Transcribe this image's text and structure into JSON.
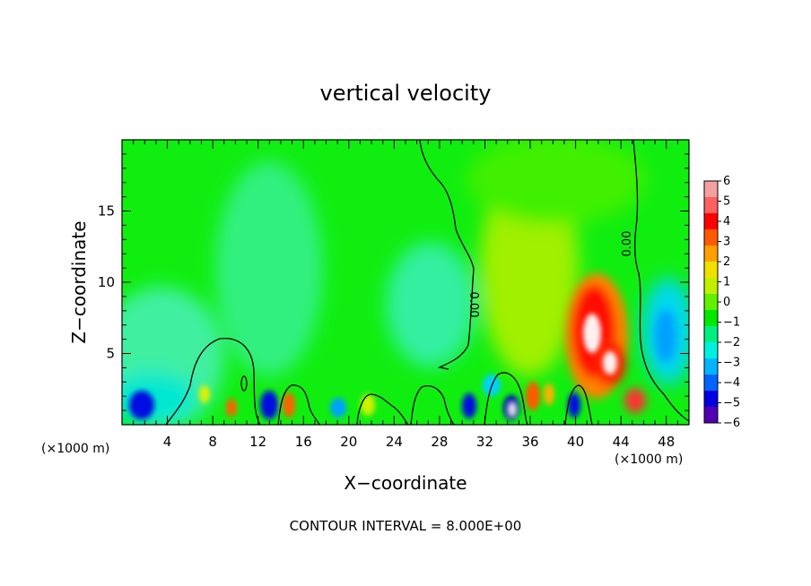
{
  "chart_data": {
    "type": "heatmap",
    "title": "vertical velocity",
    "xlabel": "X−coordinate",
    "ylabel": "Z−coordinate",
    "x_unit_left": "(×1000 m)",
    "x_unit_right": "(×1000 m)",
    "footer": "CONTOUR INTERVAL = 8.000E+00",
    "xlim": [
      0,
      50
    ],
    "ylim": [
      0,
      20
    ],
    "x_ticks": [
      4,
      8,
      12,
      16,
      20,
      24,
      28,
      32,
      36,
      40,
      44,
      48
    ],
    "y_ticks": [
      5,
      10,
      15
    ],
    "contour_labels": [
      "0.00",
      "0.00"
    ],
    "colorbar": {
      "range": [
        -6,
        6
      ],
      "tick_labels": [
        "6",
        "5",
        "4",
        "3",
        "2",
        "1",
        "0",
        "−1",
        "−2",
        "−3",
        "−4",
        "−5",
        "−6"
      ],
      "colors": [
        "#f4a0a0",
        "#ff6060",
        "#ff0000",
        "#ff5a00",
        "#ffa000",
        "#f0e000",
        "#c0f000",
        "#60f000",
        "#00e800",
        "#00f080",
        "#00f0e0",
        "#00b4ff",
        "#0064ff",
        "#0000e0",
        "#5000b0"
      ]
    },
    "features": [
      {
        "x": 1.5,
        "z": 1.3,
        "value": -3.5
      },
      {
        "x": 3.5,
        "z": 4.5,
        "value": -2.2
      },
      {
        "x": 9.8,
        "z": 1.2,
        "value": 3.5
      },
      {
        "x": 13.0,
        "z": 1.2,
        "value": -4.5
      },
      {
        "x": 14.8,
        "z": 1.2,
        "value": 3.5
      },
      {
        "x": 19.0,
        "z": 1.2,
        "value": -2.5
      },
      {
        "x": 30.0,
        "z": 1.3,
        "value": -4.0
      },
      {
        "x": 34.5,
        "z": 1.2,
        "value": -6.0
      },
      {
        "x": 36.5,
        "z": 2.0,
        "value": 3.5
      },
      {
        "x": 40.0,
        "z": 1.4,
        "value": -4.5
      },
      {
        "x": 42.0,
        "z": 6.5,
        "value": 6.0
      },
      {
        "x": 43.0,
        "z": 4.5,
        "value": 6.0
      },
      {
        "x": 45.2,
        "z": 1.8,
        "value": 5.0
      },
      {
        "x": 47.5,
        "z": 7.0,
        "value": -2.5
      }
    ]
  }
}
